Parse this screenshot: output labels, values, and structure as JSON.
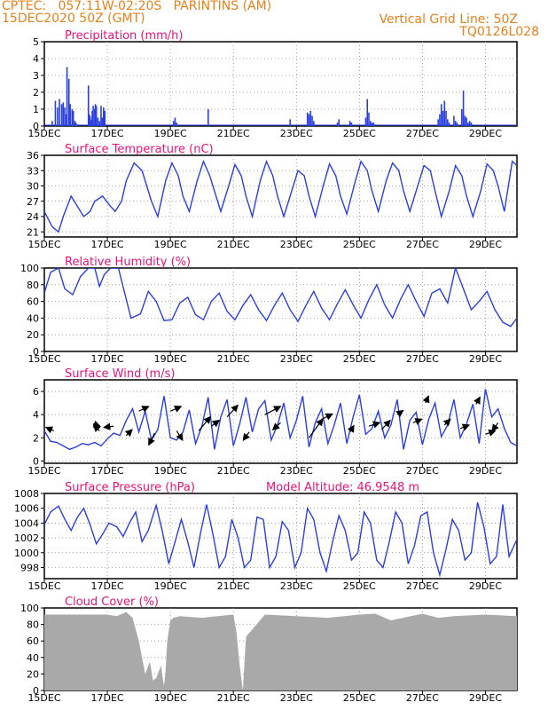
{
  "header": {
    "line1": "CPTEC:   057:11W-02:20S   PARINTINS (AM)",
    "line2": "15DEC2020 50Z (GMT)",
    "grid_note": "Vertical Grid Line: 50Z",
    "code": "TQ0126L028"
  },
  "colors": {
    "header": "#e8801a",
    "title": "#e8127a",
    "line": "#2a3fe0",
    "cloud": "#a9a9a9",
    "vector": "#000000"
  },
  "x_ticks": [
    "15DEC",
    "17DEC",
    "19DEC",
    "21DEC",
    "23DEC",
    "25DEC",
    "27DEC",
    "29DEC"
  ],
  "x_tick_days": [
    0,
    2,
    4,
    6,
    8,
    10,
    12,
    14
  ],
  "x_range_days": [
    0,
    15
  ],
  "chart_data": [
    {
      "id": "precip",
      "type": "bar",
      "title": "Precipitation (mm/h)",
      "ylim": [
        0,
        5
      ],
      "yticks": [
        "0",
        "1",
        "2",
        "3",
        "4",
        "5"
      ],
      "ytick_values": [
        0,
        1,
        2,
        3,
        4,
        5
      ],
      "x_unit": "days since 15DEC",
      "x": [
        0.25,
        0.35,
        0.42,
        0.48,
        0.55,
        0.6,
        0.65,
        0.7,
        0.72,
        0.78,
        0.82,
        0.88,
        0.92,
        0.97,
        1.0,
        1.05,
        1.4,
        1.42,
        1.45,
        1.47,
        1.5,
        1.52,
        1.55,
        1.6,
        1.62,
        1.65,
        1.7,
        1.75,
        1.8,
        1.84,
        1.88,
        1.92,
        4.1,
        4.15,
        4.2,
        5.2,
        7.8,
        8.35,
        8.4,
        8.45,
        8.5,
        8.55,
        9.3,
        9.35,
        9.7,
        9.75,
        10.2,
        10.25,
        10.3,
        10.35,
        10.4,
        10.45,
        12.5,
        12.55,
        12.6,
        12.65,
        12.7,
        12.75,
        12.8,
        12.85,
        13.0,
        13.05,
        13.1,
        13.25,
        13.3,
        13.35,
        13.4,
        13.45,
        13.5,
        13.55
      ],
      "values": [
        0.3,
        1.5,
        1.1,
        1.6,
        1.3,
        1.4,
        1.1,
        0.7,
        3.5,
        2.8,
        1.3,
        1.0,
        0.9,
        0.3,
        0.2,
        0.1,
        2.4,
        0.7,
        0.6,
        0.2,
        0.4,
        0.9,
        1.2,
        1.0,
        1.3,
        1.2,
        0.5,
        0.3,
        1.2,
        0.5,
        1.1,
        0.9,
        0.3,
        0.5,
        0.2,
        1.0,
        0.4,
        0.8,
        0.7,
        0.9,
        0.6,
        0.3,
        0.2,
        0.4,
        0.3,
        0.2,
        0.5,
        1.6,
        0.8,
        0.3,
        0.2,
        0.2,
        0.4,
        0.7,
        1.3,
        0.9,
        1.5,
        0.9,
        0.4,
        0.2,
        0.6,
        0.3,
        0.2,
        1.0,
        2.1,
        0.6,
        0.5,
        0.2,
        0.3,
        0.2
      ]
    },
    {
      "id": "temp",
      "type": "line",
      "title": "Surface Temperature (nC)",
      "ylim": [
        20,
        36
      ],
      "yticks": [
        "21",
        "24",
        "27",
        "30",
        "33",
        "36"
      ],
      "ytick_values": [
        21,
        24,
        27,
        30,
        33,
        36
      ],
      "x_unit": "days since 15DEC",
      "x": [
        0,
        0.25,
        0.45,
        0.6,
        0.85,
        1.05,
        1.25,
        1.45,
        1.6,
        1.85,
        2.1,
        2.25,
        2.45,
        2.6,
        2.85,
        3.1,
        3.25,
        3.4,
        3.6,
        3.85,
        4.05,
        4.25,
        4.4,
        4.6,
        4.85,
        5.05,
        5.25,
        5.4,
        5.6,
        5.85,
        6.05,
        6.25,
        6.4,
        6.6,
        6.85,
        7.05,
        7.25,
        7.4,
        7.6,
        7.85,
        8.05,
        8.25,
        8.4,
        8.6,
        8.85,
        9.05,
        9.25,
        9.4,
        9.6,
        9.85,
        10.05,
        10.25,
        10.4,
        10.6,
        10.85,
        11.05,
        11.25,
        11.4,
        11.6,
        11.85,
        12.05,
        12.25,
        12.4,
        12.6,
        12.85,
        13.05,
        13.25,
        13.4,
        13.6,
        13.85,
        14.05,
        14.25,
        14.4,
        14.6,
        14.85,
        15.0
      ],
      "values": [
        25,
        22,
        21,
        24,
        28,
        26,
        24,
        25,
        27,
        28,
        26,
        25,
        27,
        31,
        34.5,
        33,
        30,
        27,
        24,
        31,
        34.5,
        32,
        28,
        25,
        31,
        34.8,
        32,
        29,
        25,
        30,
        34.2,
        32,
        28,
        24,
        31,
        34.8,
        32,
        28,
        24,
        29,
        33,
        32,
        28,
        24,
        30,
        34.3,
        32,
        28,
        24.5,
        30.5,
        34.8,
        33,
        29,
        25,
        31,
        34.5,
        33,
        29,
        25,
        30,
        34,
        33,
        29,
        24,
        29,
        34,
        32,
        28,
        24,
        29,
        34.3,
        33,
        30,
        25,
        34.8,
        34
      ]
    },
    {
      "id": "rh",
      "type": "line",
      "title": "Relative Humidity (%)",
      "ylim": [
        0,
        100
      ],
      "yticks": [
        "0",
        "20",
        "40",
        "60",
        "80",
        "100"
      ],
      "ytick_values": [
        0,
        20,
        40,
        60,
        80,
        100
      ],
      "x_unit": "days since 15DEC",
      "x": [
        0,
        0.2,
        0.45,
        0.65,
        0.9,
        1.15,
        1.4,
        1.6,
        1.75,
        1.9,
        2.1,
        2.35,
        2.55,
        2.75,
        3.05,
        3.3,
        3.55,
        3.8,
        4.05,
        4.3,
        4.55,
        4.8,
        5.05,
        5.3,
        5.55,
        5.8,
        6.05,
        6.3,
        6.55,
        6.8,
        7.05,
        7.3,
        7.55,
        7.8,
        8.05,
        8.3,
        8.55,
        8.8,
        9.05,
        9.3,
        9.55,
        9.8,
        10.05,
        10.3,
        10.55,
        10.8,
        11.05,
        11.3,
        11.55,
        11.8,
        12.05,
        12.3,
        12.55,
        12.8,
        13.05,
        13.3,
        13.55,
        13.8,
        14.05,
        14.3,
        14.55,
        14.8,
        15.0
      ],
      "values": [
        70,
        95,
        100,
        75,
        68,
        90,
        100,
        100,
        78,
        92,
        100,
        100,
        70,
        40,
        45,
        72,
        60,
        37,
        38,
        58,
        65,
        44,
        38,
        60,
        70,
        48,
        38,
        55,
        68,
        50,
        37,
        55,
        70,
        50,
        36,
        55,
        72,
        52,
        38,
        57,
        74,
        56,
        40,
        62,
        80,
        56,
        40,
        62,
        80,
        60,
        42,
        70,
        75,
        58,
        100,
        75,
        50,
        60,
        72,
        50,
        35,
        30,
        40
      ]
    },
    {
      "id": "wind",
      "type": "line",
      "title": "Surface Wind (m/s)",
      "ylim": [
        -0.2,
        7
      ],
      "yticks": [
        "0",
        "2",
        "4",
        "6"
      ],
      "ytick_values": [
        0,
        2,
        4,
        6
      ],
      "x_unit": "days since 15DEC",
      "x": [
        0,
        0.2,
        0.4,
        0.6,
        0.8,
        1.0,
        1.2,
        1.4,
        1.6,
        1.8,
        2.0,
        2.2,
        2.4,
        2.6,
        2.8,
        3.0,
        3.2,
        3.4,
        3.6,
        3.8,
        4.0,
        4.2,
        4.4,
        4.6,
        4.8,
        5.0,
        5.2,
        5.4,
        5.6,
        5.8,
        6.0,
        6.2,
        6.4,
        6.6,
        6.8,
        7.0,
        7.2,
        7.4,
        7.6,
        7.8,
        8.0,
        8.2,
        8.4,
        8.6,
        8.8,
        9.0,
        9.2,
        9.4,
        9.6,
        9.8,
        10.0,
        10.2,
        10.4,
        10.6,
        10.8,
        11.0,
        11.2,
        11.4,
        11.6,
        11.8,
        12.0,
        12.2,
        12.4,
        12.6,
        12.8,
        13.0,
        13.2,
        13.4,
        13.6,
        13.8,
        14.0,
        14.2,
        14.4,
        14.6,
        14.8,
        15.0
      ],
      "values": [
        2.6,
        1.7,
        1.6,
        1.3,
        1.0,
        1.2,
        1.5,
        1.4,
        1.6,
        1.3,
        1.9,
        2.4,
        2.2,
        3.5,
        4.5,
        2.5,
        4.3,
        1.8,
        2.7,
        5.6,
        2.0,
        1.8,
        2.5,
        4.4,
        1.5,
        3.0,
        5.5,
        1.0,
        3.8,
        5.3,
        1.3,
        3.2,
        5.5,
        2.5,
        4.5,
        5.2,
        1.8,
        3.1,
        5.0,
        2.0,
        3.5,
        5.6,
        1.2,
        3.3,
        4.5,
        1.5,
        3.1,
        5.0,
        1.5,
        3.8,
        5.7,
        2.3,
        2.8,
        4.3,
        2.0,
        3.1,
        5.3,
        1.0,
        3.5,
        4.2,
        1.4,
        3.6,
        5.0,
        2.1,
        3.1,
        5.3,
        2.0,
        3.2,
        4.9,
        1.5,
        6.2,
        3.8,
        4.5,
        2.8,
        1.6,
        1.3
      ],
      "vectors": [
        {
          "x": 0.3,
          "y": 2.6,
          "u": -0.4,
          "v": 0.3
        },
        {
          "x": 1.55,
          "y": 3.2,
          "u": 0.35,
          "v": -0.2
        },
        {
          "x": 1.75,
          "y": 2.6,
          "u": -0.3,
          "v": 0.5
        },
        {
          "x": 2.2,
          "y": 3.0,
          "u": -0.5,
          "v": -0.1
        },
        {
          "x": 2.6,
          "y": 2.2,
          "u": 0.3,
          "v": 0.5
        },
        {
          "x": 3.0,
          "y": 4.3,
          "u": 0.5,
          "v": 0.4
        },
        {
          "x": 3.5,
          "y": 2.4,
          "u": -0.3,
          "v": -1.0
        },
        {
          "x": 4.0,
          "y": 4.3,
          "u": 0.55,
          "v": 0.4
        },
        {
          "x": 4.2,
          "y": 2.6,
          "u": 0.3,
          "v": -0.8
        },
        {
          "x": 4.9,
          "y": 2.6,
          "u": 0.6,
          "v": 1.2
        },
        {
          "x": 5.3,
          "y": 3.0,
          "u": 0.4,
          "v": 0.5
        },
        {
          "x": 5.8,
          "y": 3.8,
          "u": 0.55,
          "v": 1.0
        },
        {
          "x": 6.5,
          "y": 2.5,
          "u": -0.3,
          "v": -0.7
        },
        {
          "x": 7.0,
          "y": 4.0,
          "u": 0.8,
          "v": 0.7
        },
        {
          "x": 7.5,
          "y": 3.3,
          "u": -0.4,
          "v": -0.6
        },
        {
          "x": 8.4,
          "y": 2.0,
          "u": 0.7,
          "v": 1.6
        },
        {
          "x": 8.8,
          "y": 3.6,
          "u": 0.55,
          "v": 0.45
        },
        {
          "x": 9.7,
          "y": 2.5,
          "u": 0.2,
          "v": 0.55
        },
        {
          "x": 10.3,
          "y": 3.0,
          "u": 0.55,
          "v": 0.3
        },
        {
          "x": 10.7,
          "y": 2.7,
          "u": 0.45,
          "v": 0.8
        },
        {
          "x": 11.2,
          "y": 4.0,
          "u": 0.3,
          "v": 0.35
        },
        {
          "x": 11.7,
          "y": 3.3,
          "u": 0.45,
          "v": 0.3
        },
        {
          "x": 12.1,
          "y": 5.0,
          "u": 0.15,
          "v": 0.6
        },
        {
          "x": 12.7,
          "y": 3.1,
          "u": 0.3,
          "v": 0.5
        },
        {
          "x": 13.2,
          "y": 2.8,
          "u": 0.45,
          "v": 0.3
        },
        {
          "x": 13.7,
          "y": 4.9,
          "u": 0.2,
          "v": 0.6
        },
        {
          "x": 14.0,
          "y": 2.3,
          "u": 0.5,
          "v": 0.3
        },
        {
          "x": 14.4,
          "y": 3.3,
          "u": -0.3,
          "v": -0.7
        }
      ]
    },
    {
      "id": "pressure",
      "type": "line",
      "title": "Surface Pressure (hPa)",
      "extra": "Model Altitude: 46.9548 m",
      "ylim": [
        996.5,
        1008
      ],
      "yticks": [
        "998",
        "1000",
        "1002",
        "1004",
        "1006",
        "1008"
      ],
      "ytick_values": [
        998,
        1000,
        1002,
        1004,
        1006,
        1008
      ],
      "x_unit": "days since 15DEC",
      "x": [
        0,
        0.2,
        0.45,
        0.65,
        0.85,
        1.05,
        1.25,
        1.45,
        1.65,
        1.85,
        2.05,
        2.3,
        2.5,
        2.7,
        2.9,
        3.1,
        3.3,
        3.55,
        3.75,
        3.95,
        4.15,
        4.35,
        4.55,
        4.75,
        4.95,
        5.15,
        5.35,
        5.55,
        5.75,
        5.95,
        6.15,
        6.35,
        6.55,
        6.75,
        6.95,
        7.15,
        7.35,
        7.55,
        7.75,
        7.95,
        8.15,
        8.35,
        8.55,
        8.75,
        8.95,
        9.15,
        9.35,
        9.55,
        9.75,
        9.95,
        10.15,
        10.35,
        10.55,
        10.75,
        10.95,
        11.15,
        11.35,
        11.55,
        11.75,
        11.95,
        12.15,
        12.35,
        12.55,
        12.75,
        12.95,
        13.15,
        13.35,
        13.55,
        13.75,
        13.95,
        14.15,
        14.35,
        14.55,
        14.75,
        15.0
      ],
      "values": [
        1003.8,
        1005.5,
        1006.3,
        1004.5,
        1003,
        1004.8,
        1006,
        1003.8,
        1001.2,
        1002.5,
        1004,
        1003.5,
        1002.2,
        1004,
        1005.5,
        1001.5,
        1003,
        1006.4,
        1002.8,
        998.5,
        1001.5,
        1004.5,
        1001.5,
        998,
        1002.5,
        1006.5,
        1002.5,
        998,
        999.5,
        1004.5,
        1002,
        998,
        999,
        1004.8,
        1004.5,
        998,
        999.5,
        1004.2,
        1003,
        998,
        1000,
        1006,
        1004.5,
        1000,
        997.5,
        1001.5,
        1005,
        1003,
        999,
        1000,
        1005.5,
        1004,
        999,
        998,
        1001.5,
        1005.5,
        1004,
        998.5,
        1001,
        1005,
        1005.5,
        1000,
        997,
        1000.5,
        1004.5,
        1003,
        999,
        1000,
        1006.8,
        1003.5,
        998.5,
        999.5,
        1006.5,
        999.5,
        1001.8
      ]
    },
    {
      "id": "cloud",
      "type": "area",
      "title": "Cloud Cover (%)",
      "ylim": [
        0,
        100
      ],
      "yticks": [
        "0",
        "20",
        "40",
        "60",
        "80",
        "100"
      ],
      "ytick_values": [
        0,
        20,
        40,
        60,
        80,
        100
      ],
      "x_unit": "days since 15DEC",
      "x": [
        0,
        0.5,
        1.0,
        1.5,
        2.0,
        2.3,
        2.6,
        2.8,
        3.0,
        3.1,
        3.2,
        3.35,
        3.45,
        3.55,
        3.7,
        3.8,
        3.85,
        3.9,
        4.0,
        4.1,
        4.3,
        5.0,
        6.0,
        6.1,
        6.2,
        6.3,
        6.4,
        7.0,
        8.0,
        9.0,
        10.0,
        10.5,
        11.0,
        12.0,
        12.5,
        13.0,
        14.0,
        15.0
      ],
      "values": [
        92,
        92,
        92,
        92,
        92,
        90,
        95,
        88,
        60,
        40,
        20,
        35,
        12,
        15,
        30,
        5,
        25,
        60,
        85,
        88,
        90,
        88,
        92,
        70,
        30,
        0,
        65,
        92,
        90,
        88,
        92,
        93,
        85,
        93,
        88,
        90,
        92,
        90
      ]
    }
  ]
}
